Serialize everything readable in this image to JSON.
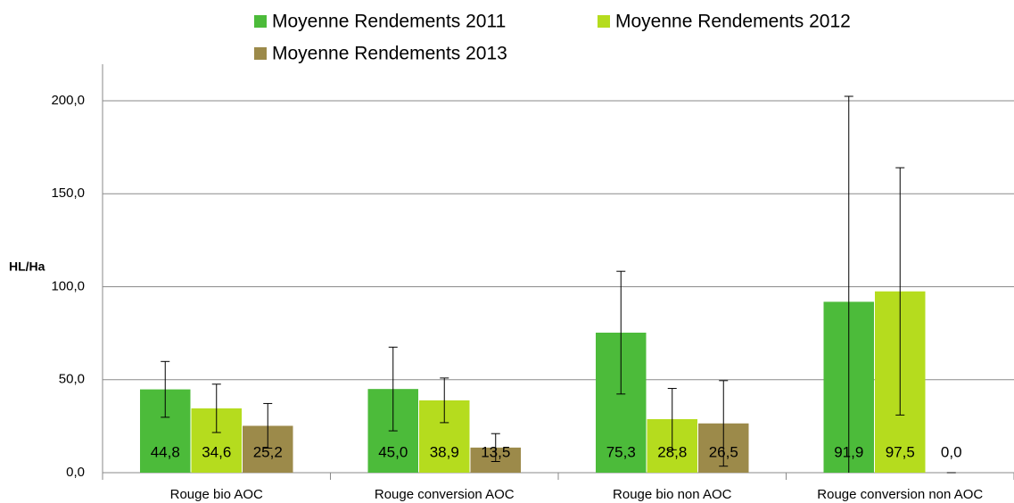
{
  "chart_data": {
    "type": "bar",
    "y_label": "HL/Ha",
    "categories": [
      "Rouge bio AOC",
      "Rouge conversion AOC",
      "Rouge bio non AOC",
      "Rouge conversion non AOC"
    ],
    "series": [
      {
        "name": "Moyenne Rendements 2011",
        "color": "#4cbb3a",
        "values": [
          44.8,
          45.0,
          75.3,
          91.9
        ],
        "value_labels": [
          "44,8",
          "45,0",
          "75,3",
          "91,9"
        ],
        "errors": [
          15.0,
          22.5,
          33.0,
          110.5
        ]
      },
      {
        "name": "Moyenne Rendements 2012",
        "color": "#b5dc1e",
        "values": [
          34.6,
          38.9,
          28.8,
          97.5
        ],
        "value_labels": [
          "34,6",
          "38,9",
          "28,8",
          "97,5"
        ],
        "errors": [
          13.0,
          12.0,
          16.5,
          66.5
        ]
      },
      {
        "name": "Moyenne Rendements 2013",
        "color": "#9c8a4a",
        "values": [
          25.2,
          13.5,
          26.5,
          0.0
        ],
        "value_labels": [
          "25,2",
          "13,5",
          "26,5",
          "0,0"
        ],
        "errors": [
          12.0,
          7.5,
          23.0,
          0.0
        ]
      }
    ],
    "ylim": [
      0,
      200
    ],
    "yticks": [
      {
        "value": 0,
        "label": "0,0"
      },
      {
        "value": 50,
        "label": "50,0"
      },
      {
        "value": 100,
        "label": "100,0"
      },
      {
        "value": 150,
        "label": "150,0"
      },
      {
        "value": 200,
        "label": "200,0"
      }
    ],
    "grid": true
  }
}
